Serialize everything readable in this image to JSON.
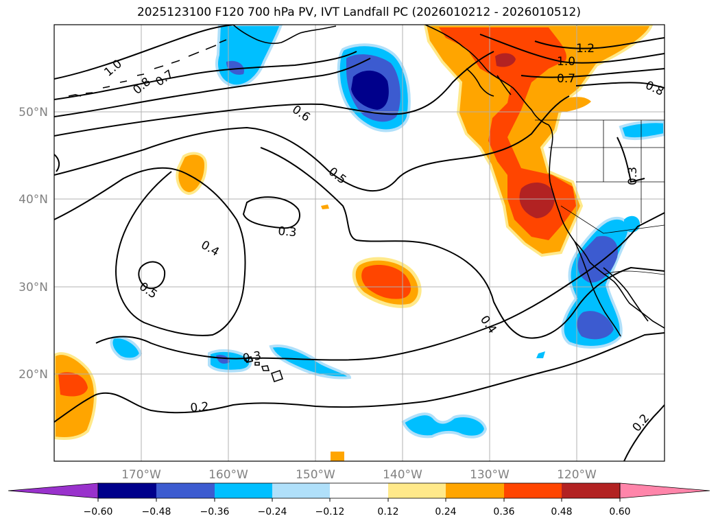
{
  "title": "2025123100 F120 700 hPa PV, IVT Landfall PC (2026010212 - 2026010512)",
  "map": {
    "projection": "cylindrical",
    "lon_range": [
      -180,
      -110
    ],
    "lat_range": [
      10,
      60
    ],
    "lon_ticks": [
      {
        "lon": -170,
        "label": "170°W"
      },
      {
        "lon": -160,
        "label": "160°W"
      },
      {
        "lon": -150,
        "label": "150°W"
      },
      {
        "lon": -140,
        "label": "140°W"
      },
      {
        "lon": -130,
        "label": "130°W"
      },
      {
        "lon": -120,
        "label": "120°W"
      }
    ],
    "lat_ticks": [
      {
        "lat": 50,
        "label": "50°N"
      },
      {
        "lat": 40,
        "label": "40°N"
      },
      {
        "lat": 30,
        "label": "30°N"
      },
      {
        "lat": 20,
        "label": "20°N"
      }
    ],
    "contour_labels": [
      "1.0",
      "0.8",
      "0.7",
      "0.6",
      "0.5",
      "0.4",
      "0.3",
      "0.5",
      "0.4",
      "0.3",
      "0.2",
      "1.2",
      "1.0",
      "0.7",
      "0.8",
      "0.3",
      "0.2"
    ]
  },
  "colorbar": {
    "ticks": [
      "−0.60",
      "−0.48",
      "−0.36",
      "−0.24",
      "−0.12",
      "0.12",
      "0.24",
      "0.36",
      "0.48",
      "0.60"
    ],
    "extend_low_color": "#9932cc",
    "extend_high_color": "#ff85aa",
    "colors": [
      "#00008b",
      "#3c5bd0",
      "#00bfff",
      "#b0e0fa",
      "#ffffff",
      "#ffe98a",
      "#ffa500",
      "#ff4500",
      "#b22222"
    ]
  },
  "colors": {
    "c1": "#00008b",
    "c2": "#3c5bd0",
    "c3": "#00bfff",
    "c4": "#b0e0fa",
    "w1": "#ffe98a",
    "w2": "#ffa500",
    "w3": "#ff4500",
    "w4": "#b22222"
  }
}
